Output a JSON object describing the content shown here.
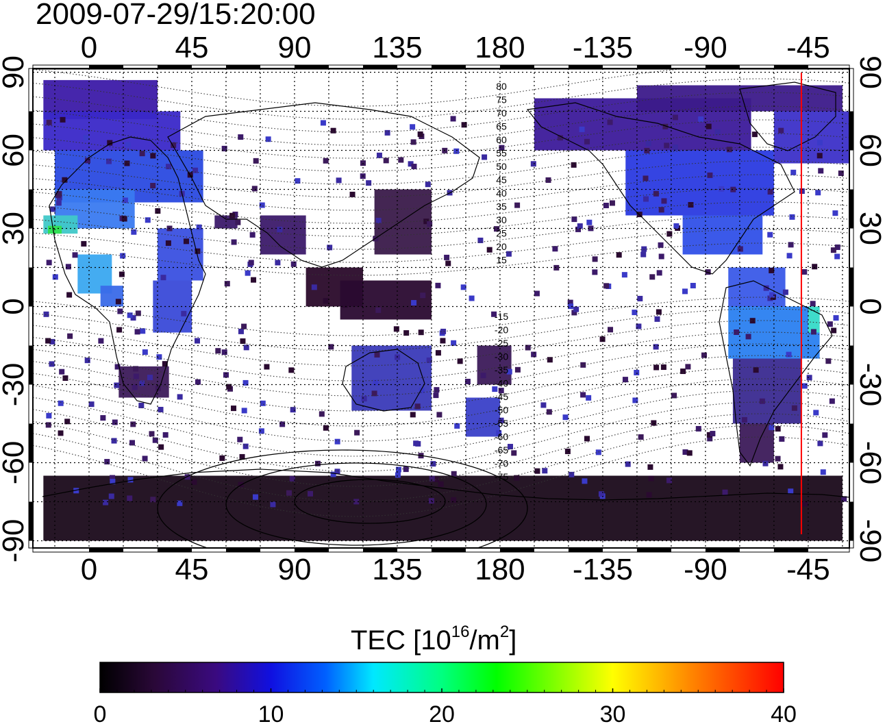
{
  "timestamp": "2009-07-29/15:20:00",
  "map": {
    "lon_labels": [
      "0",
      "45",
      "90",
      "135",
      "180",
      "-135",
      "-90",
      "-45"
    ],
    "lat_labels": [
      "90",
      "60",
      "30",
      "0",
      "-30",
      "-60",
      "-90"
    ],
    "contour_labels_north": [
      "80",
      "75",
      "70",
      "65",
      "60",
      "55",
      "50",
      "45",
      "40",
      "35",
      "30",
      "25",
      "20",
      "15"
    ],
    "contour_labels_south": [
      "-15",
      "-20",
      "-25",
      "-30",
      "-35",
      "-40",
      "-45",
      "-50",
      "-55",
      "-60",
      "-65",
      "-70",
      "-75"
    ],
    "marker_line_lon": -48,
    "marker_line_color": "#ff0000"
  },
  "colorbar": {
    "label_prefix": "TEC  [10",
    "label_exp": "16",
    "label_mid": "/m",
    "label_exp2": "2",
    "label_suffix": "]",
    "ticks": [
      "0",
      "10",
      "20",
      "30",
      "40"
    ],
    "range": [
      0,
      40
    ],
    "colormap": [
      "#000000",
      "#2a0a3a",
      "#3a0a7a",
      "#2a10c0",
      "#0000ff",
      "#0090ff",
      "#00ffff",
      "#00ff60",
      "#00ff00",
      "#ffff00",
      "#ff8000",
      "#ff0000"
    ]
  },
  "colors": {
    "low": "#3c0a5a",
    "mid": "#3a2ad8",
    "high": "#3a8aff",
    "peak": "#40e0d0"
  }
}
